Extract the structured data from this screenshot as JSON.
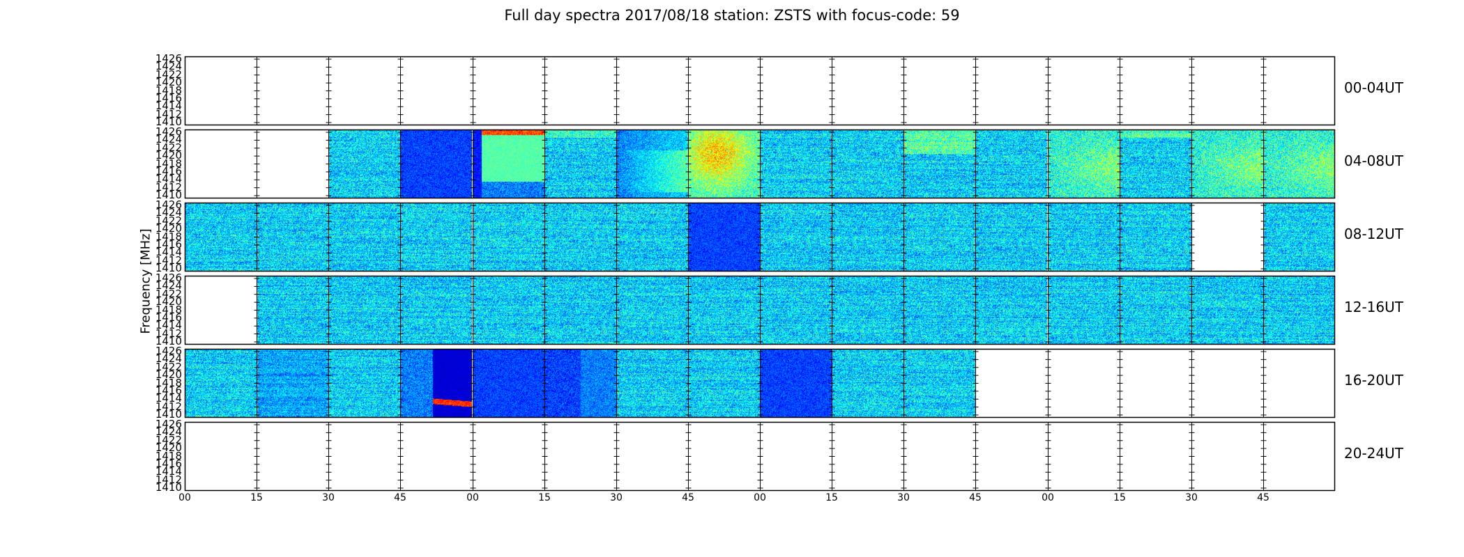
{
  "chart_data": {
    "type": "heatmap",
    "title": "Full day spectra 2017/08/18 station: ZSTS with focus-code: 59",
    "ylabel": "Frequency [MHz]",
    "xlabel": "",
    "x_tick_labels": [
      "00",
      "15",
      "30",
      "45",
      "00",
      "15",
      "30",
      "45",
      "00",
      "15",
      "30",
      "45",
      "00",
      "15",
      "30",
      "45"
    ],
    "y_tick_labels": [
      "1426",
      "1424",
      "1422",
      "1420",
      "1418",
      "1416",
      "1414",
      "1412",
      "1410"
    ],
    "ylim": [
      1410,
      1426
    ],
    "colormap": "jet",
    "columns_per_row": 16,
    "column_minutes": 15,
    "rows": [
      {
        "label": "00-04UT",
        "cells": [
          "empty",
          "empty",
          "empty",
          "empty",
          "empty",
          "empty",
          "empty",
          "empty",
          "empty",
          "empty",
          "empty",
          "empty",
          "empty",
          "empty",
          "empty",
          "empty"
        ]
      },
      {
        "label": "04-08UT",
        "cells": [
          "empty",
          "empty",
          "noise",
          "dark",
          "burst-high",
          "noise-band",
          "fade",
          "hot",
          "noise",
          "noise",
          "mid-band",
          "noise",
          "warm",
          "noise-band",
          "warm",
          "warm"
        ]
      },
      {
        "label": "08-12UT",
        "cells": [
          "noise",
          "noise",
          "noise",
          "noise",
          "noise",
          "noise",
          "noise",
          "dark",
          "noise",
          "noise",
          "noise",
          "noise",
          "noise",
          "noise",
          "empty",
          "noise"
        ]
      },
      {
        "label": "12-16UT",
        "cells": [
          "empty",
          "noise",
          "noise",
          "noise",
          "noise",
          "noise",
          "noise",
          "noise",
          "noise",
          "noise",
          "noise",
          "noise",
          "noise",
          "noise",
          "noise",
          "noise"
        ]
      },
      {
        "label": "16-20UT",
        "cells": [
          "noise",
          "dark-noise",
          "noise",
          "sweep",
          "dark",
          "dark-fade",
          "noise",
          "noise",
          "dark",
          "noise",
          "noise",
          "empty",
          "empty",
          "empty",
          "empty",
          "empty"
        ]
      },
      {
        "label": "20-24UT",
        "cells": [
          "empty",
          "empty",
          "empty",
          "empty",
          "empty",
          "empty",
          "empty",
          "empty",
          "empty",
          "empty",
          "empty",
          "empty",
          "empty",
          "empty",
          "empty",
          "empty"
        ]
      }
    ]
  }
}
